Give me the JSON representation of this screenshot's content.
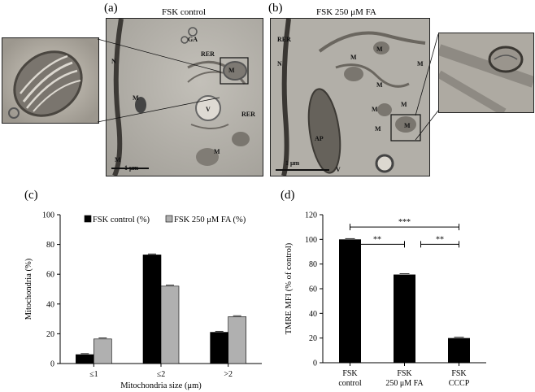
{
  "panels": {
    "a": {
      "label": "(a)",
      "title": "FSK control",
      "scale": "1 μm",
      "tags": [
        "GA",
        "RER",
        "M",
        "N",
        "M",
        "V",
        "RER",
        "M",
        "M"
      ]
    },
    "b": {
      "label": "(b)",
      "title": "FSK 250 μM FA",
      "scale": "1 μm",
      "tags": [
        "RER",
        "M",
        "M",
        "M",
        "N",
        "M",
        "M",
        "M",
        "AP",
        "M",
        "M",
        "V"
      ]
    },
    "c": {
      "label": "(c)"
    },
    "d": {
      "label": "(d)",
      "significance": [
        "***",
        "**",
        "**"
      ]
    }
  },
  "chart_data": [
    {
      "type": "bar",
      "categories": [
        "≤1",
        "≤2",
        ">2"
      ],
      "series": [
        {
          "name": "FSK control (%)",
          "values": [
            6,
            73,
            21
          ],
          "color": "#000000"
        },
        {
          "name": "FSK 250 μM FA (%)",
          "values": [
            16.5,
            52,
            31.5
          ],
          "color": "#b0b0b0"
        }
      ],
      "xlabel": "Mitochondria size (μm)",
      "ylabel": "Mitochondria (%)",
      "ylim": [
        0,
        100
      ],
      "yticks": [
        0,
        20,
        40,
        60,
        80,
        100
      ],
      "legend": "top-left"
    },
    {
      "type": "bar",
      "categories": [
        "FSK control",
        "FSK 250 μM FA",
        "FSK CCCP"
      ],
      "series": [
        {
          "name": "",
          "values": [
            100,
            71.5,
            20
          ],
          "color": "#000000"
        }
      ],
      "xlabel": "",
      "ylabel": "TMRE MFI (% of control)",
      "ylim": [
        0,
        120
      ],
      "yticks": [
        0,
        20,
        40,
        60,
        80,
        100,
        120
      ],
      "category_lines": [
        [
          "FSK",
          "control"
        ],
        [
          "FSK",
          "250 μM FA"
        ],
        [
          "FSK",
          "CCCP"
        ]
      ]
    }
  ]
}
